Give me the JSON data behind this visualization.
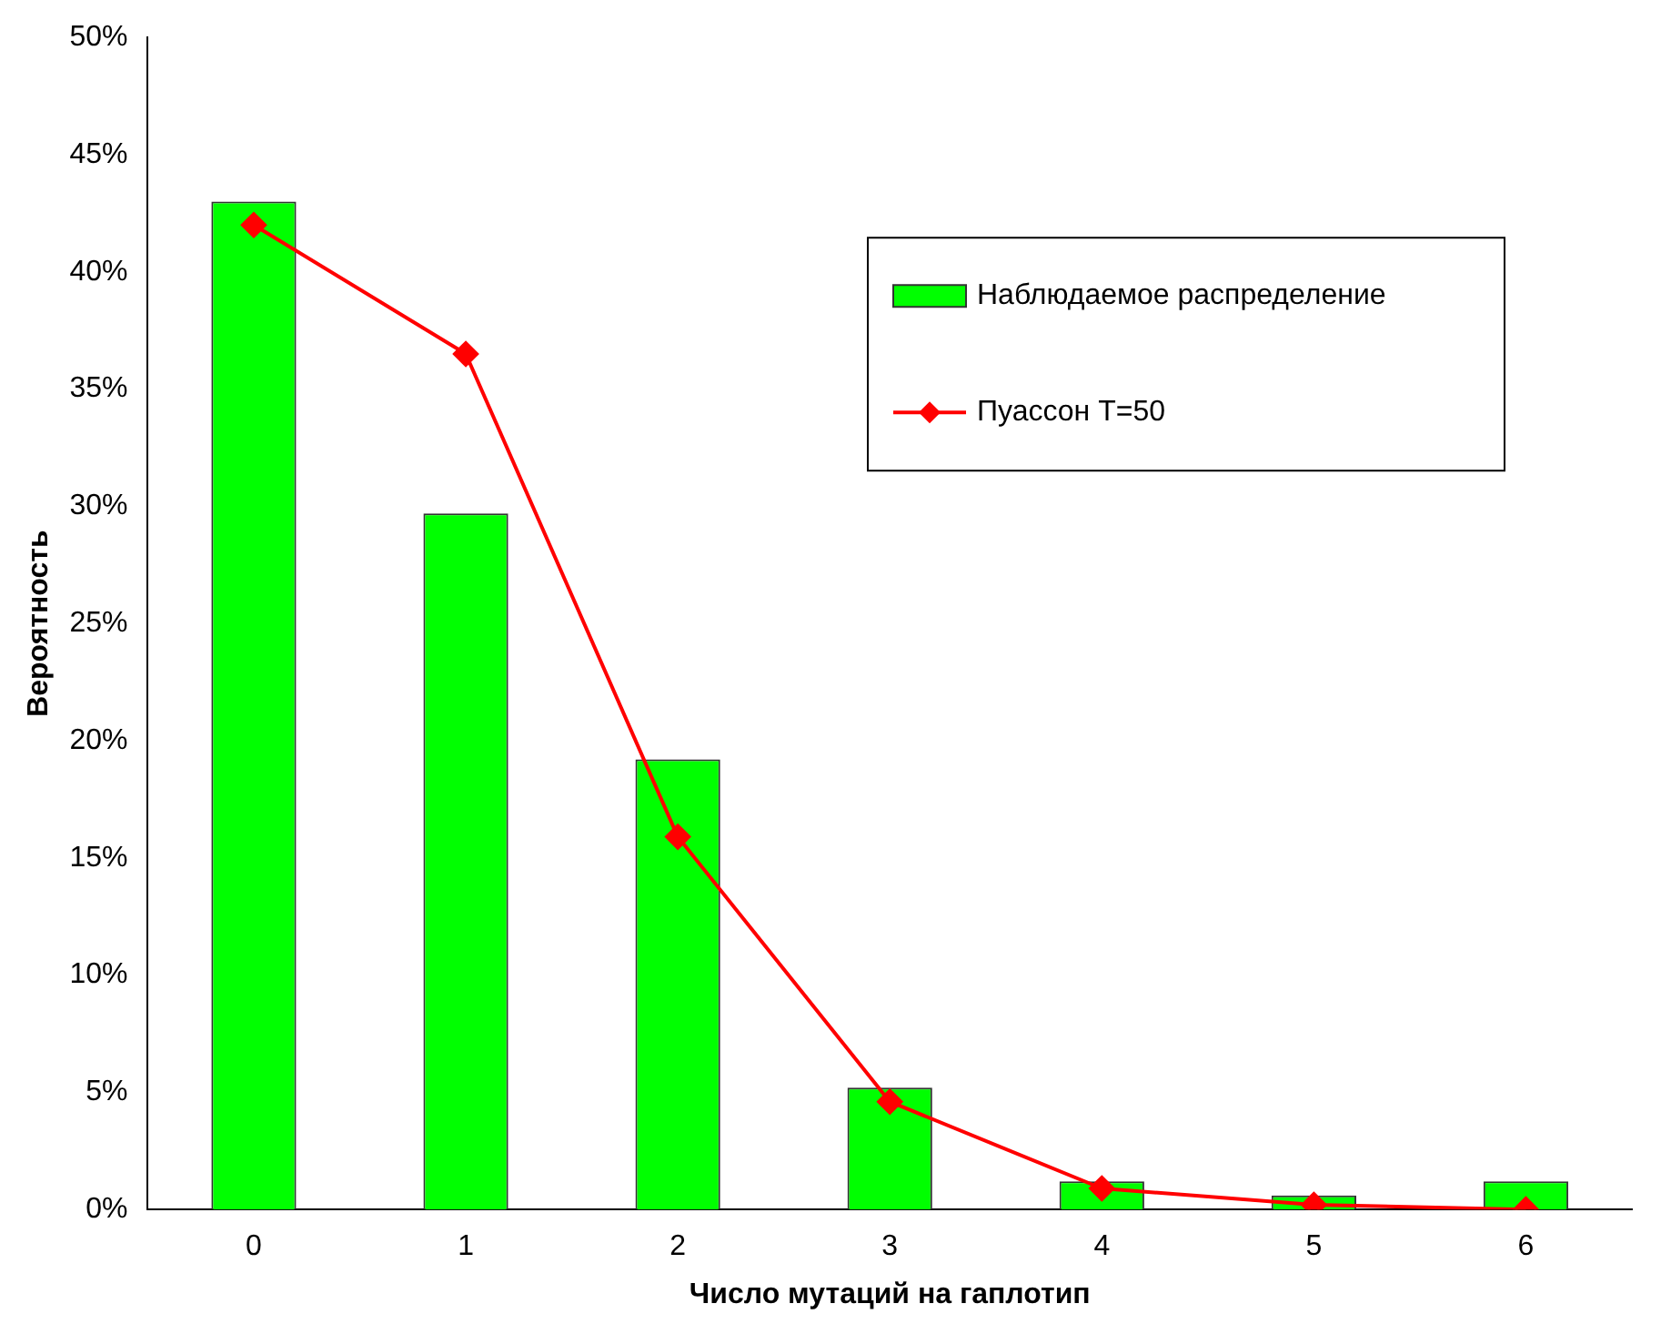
{
  "chart_data": {
    "type": "bar",
    "xlabel": "Число мутаций на гаплотип",
    "ylabel": "Вероятность",
    "categories": [
      "0",
      "1",
      "2",
      "3",
      "4",
      "5",
      "6"
    ],
    "series": [
      {
        "name": "Наблюдаемое распределение",
        "color": "#00ff00",
        "values": [
          43,
          29.7,
          19.2,
          5.2,
          1.2,
          0.6,
          1.2
        ]
      },
      {
        "name": "Пуассон T=50",
        "type": "line",
        "color": "#ff0000",
        "marker": "diamond",
        "values": [
          42,
          36.5,
          15.9,
          4.6,
          0.9,
          0.2,
          0
        ]
      }
    ],
    "ylim": [
      0,
      50
    ],
    "yticks": [
      {
        "value": 0,
        "label": "0%"
      },
      {
        "value": 5,
        "label": "5%"
      },
      {
        "value": 10,
        "label": "10%"
      },
      {
        "value": 15,
        "label": "15%"
      },
      {
        "value": 20,
        "label": "20%"
      },
      {
        "value": 25,
        "label": "25%"
      },
      {
        "value": 30,
        "label": "30%"
      },
      {
        "value": 35,
        "label": "35%"
      },
      {
        "value": 40,
        "label": "40%"
      },
      {
        "value": 45,
        "label": "45%"
      },
      {
        "value": 50,
        "label": "50%"
      }
    ],
    "grid": false,
    "legend": "top right"
  }
}
